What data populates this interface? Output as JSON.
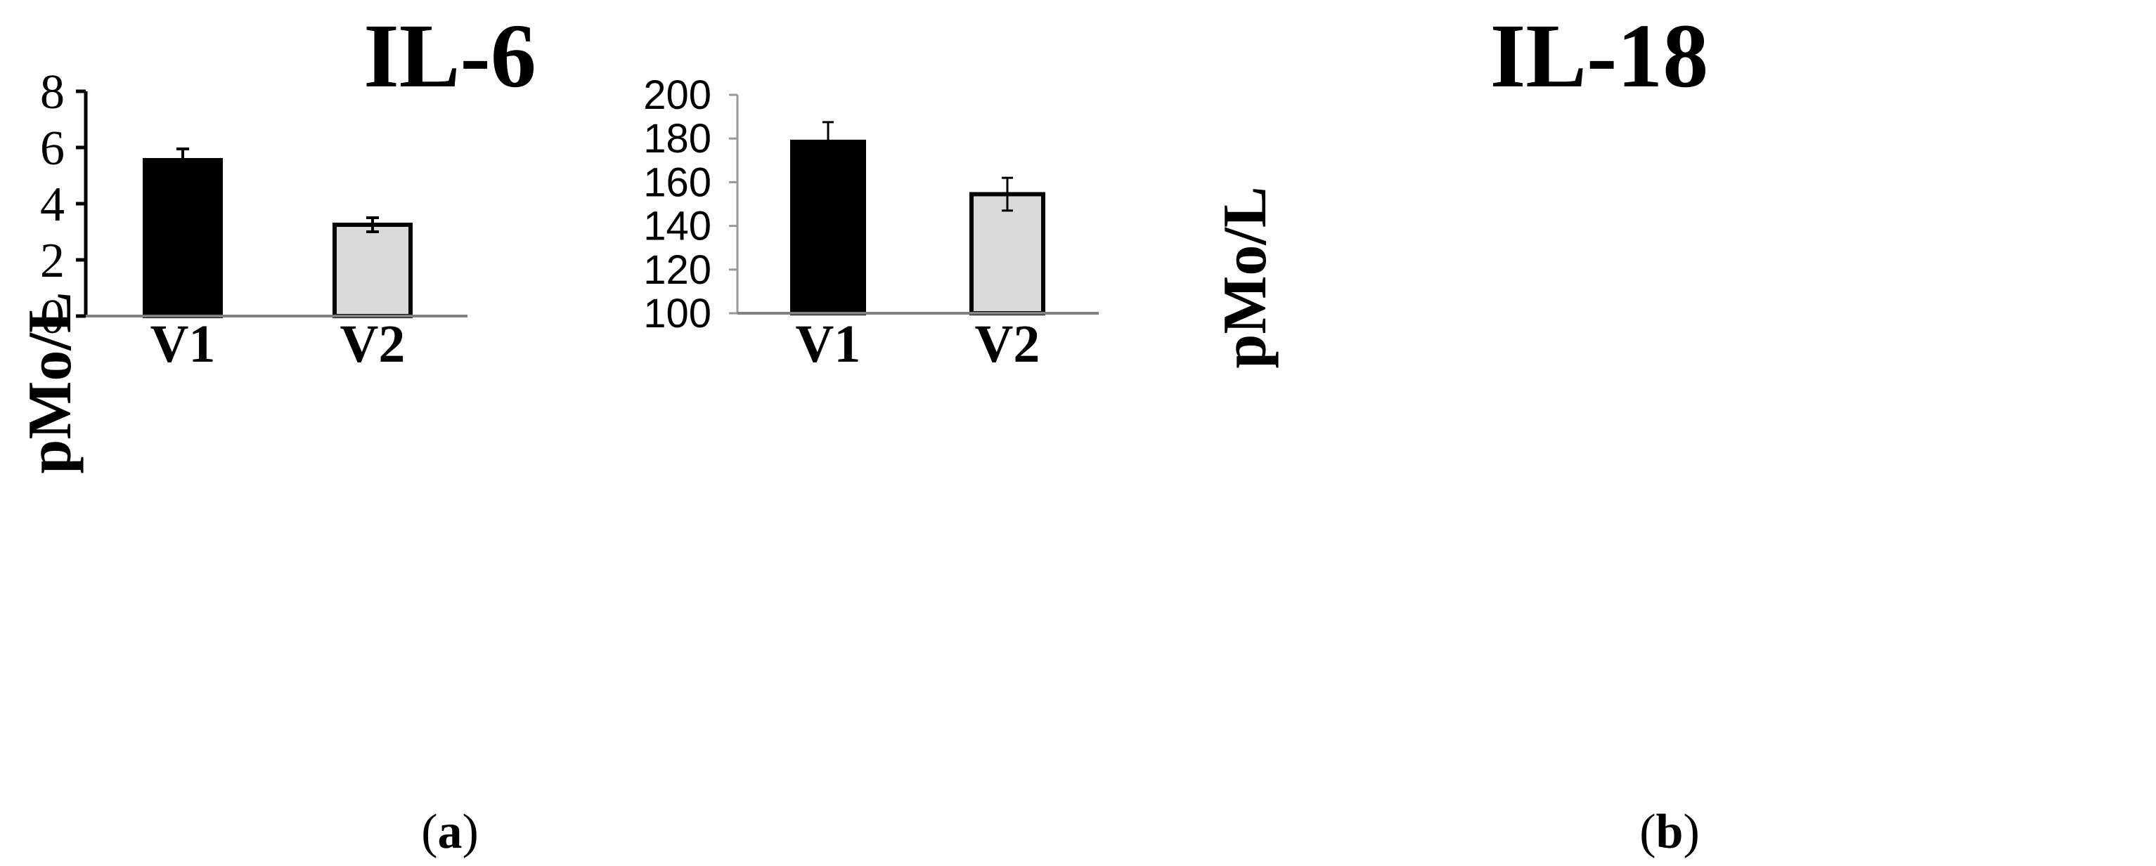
{
  "colors": {
    "v1_fill": "#000000",
    "v2_fill": "#d9d9d9",
    "bar_stroke": "#000000",
    "baseline": "#808080",
    "axis_a": "#000000",
    "axis_b": "#999999"
  },
  "chart_data": [
    {
      "type": "bar",
      "title": "IL-6",
      "ylabel": "pMo/L",
      "xlabel": "",
      "categories": [
        "V1",
        "V2"
      ],
      "values": [
        5.55,
        3.25
      ],
      "errors": [
        0.4,
        0.25
      ],
      "ylim": [
        0,
        8
      ],
      "yticks": [
        0,
        2,
        4,
        6,
        8
      ],
      "grid": false,
      "panel_label": {
        "open": "(",
        "letter": "a",
        "close": ")"
      }
    },
    {
      "type": "bar",
      "title": "IL-18",
      "ylabel": "pMo/L",
      "xlabel": "",
      "categories": [
        "V1",
        "V2"
      ],
      "values": [
        178.5,
        154.5
      ],
      "errors": [
        9,
        7.5
      ],
      "ylim": [
        100,
        200
      ],
      "yticks": [
        100,
        120,
        140,
        160,
        180,
        200
      ],
      "grid": false,
      "panel_label": {
        "open": "(",
        "letter": "b",
        "close": ")"
      }
    }
  ]
}
